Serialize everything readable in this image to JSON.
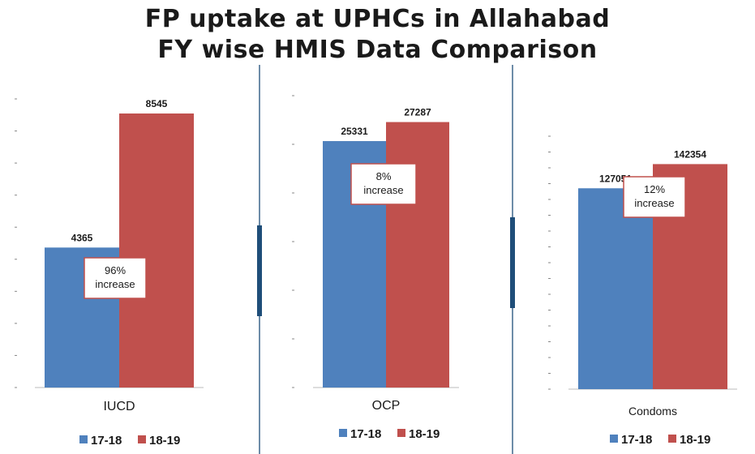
{
  "title_line1": "FP uptake at UPHCs in Allahabad",
  "title_line2": "FY wise HMIS Data Comparison",
  "colors": {
    "series_17_18": "#4f81bd",
    "series_18_19": "#c0504d",
    "divider": "#1f4e79",
    "box_border": "#c0504d"
  },
  "chart_data": [
    {
      "type": "bar",
      "categories": [
        "IUCD"
      ],
      "series": [
        {
          "name": "17-18",
          "values": [
            4365
          ]
        },
        {
          "name": "18-19",
          "values": [
            8545
          ]
        }
      ],
      "annotation": [
        "96%",
        "increase"
      ],
      "legend": [
        "17-18",
        "18-19"
      ],
      "legend_position": "bottom"
    },
    {
      "type": "bar",
      "categories": [
        "OCP"
      ],
      "series": [
        {
          "name": "17-18",
          "values": [
            25331
          ]
        },
        {
          "name": "18-19",
          "values": [
            27287
          ]
        }
      ],
      "annotation": [
        "8%",
        "increase"
      ],
      "legend": [
        "17-18",
        "18-19"
      ],
      "legend_position": "bottom"
    },
    {
      "type": "bar",
      "categories": [
        "Condoms"
      ],
      "series": [
        {
          "name": "17-18",
          "values": [
            127051
          ]
        },
        {
          "name": "18-19",
          "values": [
            142354
          ]
        }
      ],
      "annotation": [
        "12%",
        "increase"
      ],
      "legend": [
        "17-18",
        "18-19"
      ],
      "legend_position": "bottom"
    }
  ]
}
